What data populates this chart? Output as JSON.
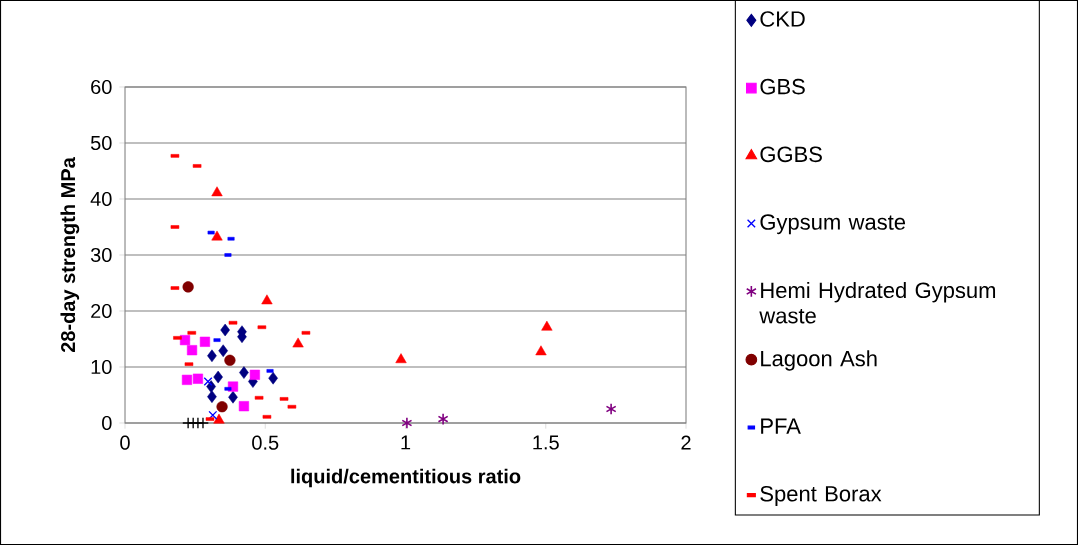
{
  "chart_data": {
    "type": "scatter",
    "xlabel": "liquid/cementitious ratio",
    "ylabel": "28-day strength MPa",
    "xlim": [
      0,
      2
    ],
    "ylim": [
      0,
      60
    ],
    "xticks": [
      0,
      0.5,
      1,
      1.5,
      2
    ],
    "yticks": [
      0,
      10,
      20,
      30,
      40,
      50,
      60
    ],
    "grid": "y",
    "legend": "right",
    "series": [
      {
        "name": "CKD",
        "color": "#000080",
        "marker": "diamond",
        "x": [
          0.357,
          0.417,
          0.417,
          0.35,
          0.31,
          0.332,
          0.424,
          0.456,
          0.528,
          0.307,
          0.31,
          0.385
        ],
        "values": [
          16.6,
          16.3,
          15.4,
          12.9,
          12.0,
          8.2,
          9.0,
          7.4,
          8.0,
          6.5,
          4.7,
          4.6
        ]
      },
      {
        "name": "GBS",
        "color": "#ff00ff",
        "marker": "square",
        "x": [
          0.214,
          0.239,
          0.285,
          0.221,
          0.26,
          0.463,
          0.385,
          0.424
        ],
        "values": [
          14.8,
          13.0,
          14.5,
          7.7,
          7.9,
          8.6,
          6.5,
          3.0
        ]
      },
      {
        "name": "GGBS",
        "color": "#ff0000",
        "marker": "triangle",
        "x": [
          0.328,
          0.328,
          0.506,
          0.617,
          0.335,
          0.984,
          1.483,
          1.504
        ],
        "values": [
          41.1,
          33.2,
          21.8,
          14.1,
          0.5,
          11.3,
          12.7,
          17.1
        ]
      },
      {
        "name": "Gypsum waste",
        "color": "#0000ff",
        "marker": "cross",
        "x": [
          0.296,
          0.313
        ],
        "values": [
          7.4,
          1.4
        ]
      },
      {
        "name": "Hemi Hydrated Gypsum waste",
        "color": "#800080",
        "marker": "cross",
        "x": [
          1.005,
          1.134,
          1.733
        ],
        "values": [
          0.0,
          0.7,
          2.5
        ]
      },
      {
        "name": "Lagoon Ash",
        "color": "#800000",
        "marker": "circle",
        "x": [
          0.225,
          0.374,
          0.346
        ],
        "values": [
          24.3,
          11.2,
          2.9
        ]
      },
      {
        "color": "#000000",
        "marker": "cross",
        "x": [
          0.225,
          0.243,
          0.26,
          0.278
        ],
        "values": [
          0,
          0,
          0,
          0
        ]
      },
      {
        "name": "PFA",
        "color": "#0000ff",
        "marker": "square",
        "x": [
          0.307,
          0.378,
          0.367,
          0.328,
          0.367,
          0.517
        ],
        "values": [
          34.0,
          32.9,
          30.0,
          14.8,
          6.1,
          9.3
        ]
      },
      {
        "name": "Spent Borax",
        "color": "#ff0000",
        "marker": "square",
        "x": [
          0.178,
          0.257,
          0.178,
          0.178,
          0.385,
          0.488,
          0.645,
          0.238,
          0.187,
          0.228,
          0.478,
          0.567,
          0.595,
          0.506,
          0.303
        ],
        "values": [
          47.7,
          45.9,
          35.0,
          24.1,
          17.9,
          17.1,
          16.1,
          16.1,
          15.2,
          10.5,
          4.5,
          4.3,
          2.9,
          1.1,
          0.7
        ]
      }
    ]
  }
}
